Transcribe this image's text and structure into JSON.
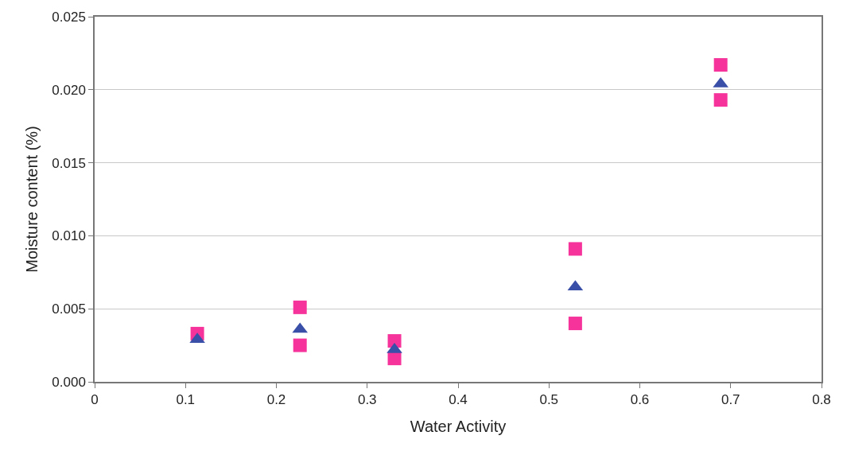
{
  "chart_data": {
    "type": "scatter",
    "xlabel": "Water Activity",
    "ylabel": "Moisture content (%)",
    "series": [
      {
        "color": "#f5339a",
        "marker": "square",
        "x": [
          0.113,
          0.226,
          0.226,
          0.33,
          0.33,
          0.529,
          0.529,
          0.689,
          0.689
        ],
        "values": [
          0.0033,
          0.0051,
          0.0025,
          0.0028,
          0.0016,
          0.0091,
          0.004,
          0.0217,
          0.0193
        ]
      },
      {
        "color": "#3a4fa8",
        "marker": "triangle",
        "x": [
          0.113,
          0.226,
          0.33,
          0.529,
          0.689
        ],
        "values": [
          0.0029,
          0.0036,
          0.0022,
          0.0065,
          0.0204
        ]
      }
    ],
    "xlim": [
      0,
      0.8
    ],
    "xticks": [
      {
        "value": 0,
        "label": "0"
      },
      0.1,
      0.2,
      0.3,
      0.4,
      0.5,
      0.6,
      0.7,
      0.8
    ],
    "ylim": [
      0,
      0.025
    ],
    "yticks": [
      {
        "value": 0,
        "label": "0.000"
      },
      {
        "value": 0.005,
        "label": "0.005"
      },
      {
        "value": 0.01,
        "label": "0.010"
      },
      {
        "value": 0.015,
        "label": "0.015"
      },
      {
        "value": 0.02,
        "label": "0.020"
      },
      {
        "value": 0.025,
        "label": "0.025"
      }
    ],
    "grid": "y"
  }
}
